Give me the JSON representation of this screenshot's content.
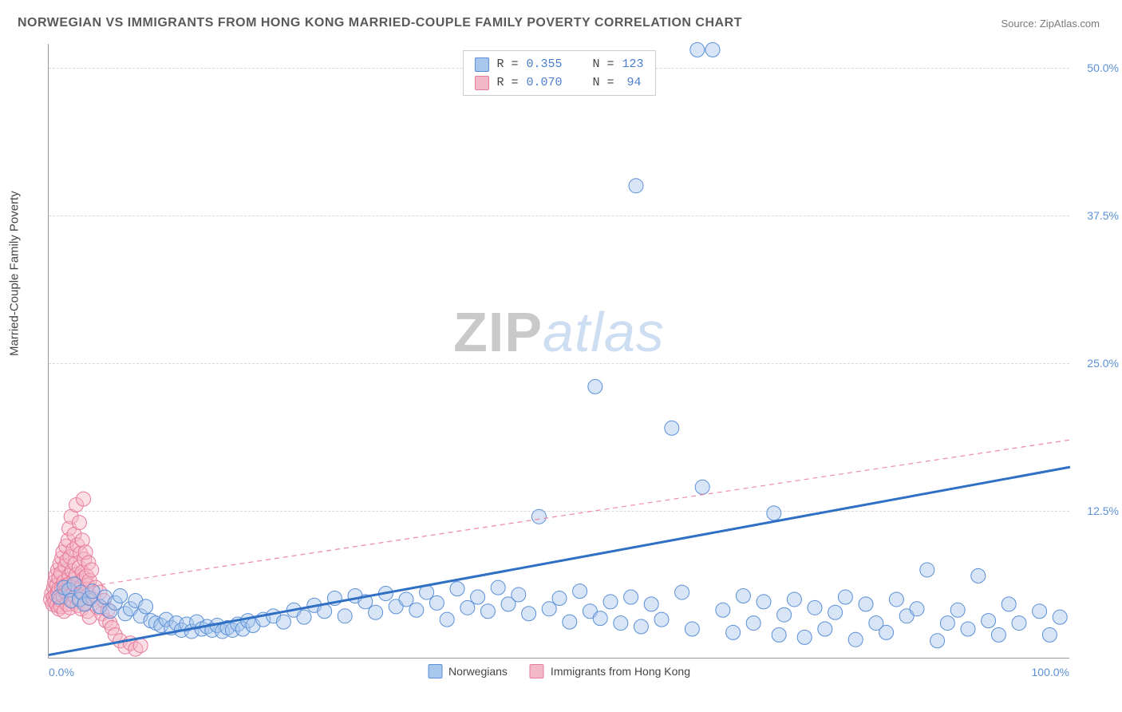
{
  "title": "NORWEGIAN VS IMMIGRANTS FROM HONG KONG MARRIED-COUPLE FAMILY POVERTY CORRELATION CHART",
  "source_label": "Source: ",
  "source_name": "ZipAtlas.com",
  "y_axis_title": "Married-Couple Family Poverty",
  "watermark": {
    "part1": "ZIP",
    "part2": "atlas"
  },
  "chart": {
    "type": "scatter",
    "xlim": [
      0,
      100
    ],
    "ylim": [
      0,
      52
    ],
    "x_ticks": [
      0,
      100
    ],
    "x_tick_labels": [
      "0.0%",
      "100.0%"
    ],
    "y_ticks": [
      12.5,
      25.0,
      37.5,
      50.0
    ],
    "y_tick_labels": [
      "12.5%",
      "25.0%",
      "37.5%",
      "50.0%"
    ],
    "background_color": "#ffffff",
    "grid_color": "#d8d8d8",
    "marker_radius": 9,
    "marker_opacity": 0.45,
    "series": [
      {
        "name": "Norwegians",
        "fill": "#a9c6ec",
        "stroke": "#5b8fd6",
        "r_value": "0.355",
        "n_value": "123",
        "trend": {
          "x1": 0,
          "y1": 0.3,
          "x2": 100,
          "y2": 16.2,
          "color": "#2f6fc4",
          "width": 3,
          "dash": "none"
        },
        "points": [
          [
            1,
            5.2
          ],
          [
            1.5,
            6.0
          ],
          [
            2,
            5.8
          ],
          [
            2.2,
            4.9
          ],
          [
            2.5,
            6.3
          ],
          [
            3,
            5.0
          ],
          [
            3.2,
            5.6
          ],
          [
            3.5,
            4.6
          ],
          [
            4,
            5.1
          ],
          [
            4.3,
            5.7
          ],
          [
            5,
            4.4
          ],
          [
            5.5,
            5.2
          ],
          [
            6,
            4.0
          ],
          [
            6.5,
            4.7
          ],
          [
            7,
            5.3
          ],
          [
            7.5,
            3.8
          ],
          [
            8,
            4.2
          ],
          [
            8.5,
            4.9
          ],
          [
            9,
            3.6
          ],
          [
            9.5,
            4.4
          ],
          [
            10,
            3.2
          ],
          [
            10.5,
            3.0
          ],
          [
            11,
            2.8
          ],
          [
            11.5,
            3.3
          ],
          [
            12,
            2.6
          ],
          [
            12.5,
            3.0
          ],
          [
            13,
            2.4
          ],
          [
            13.5,
            2.9
          ],
          [
            14,
            2.3
          ],
          [
            14.5,
            3.1
          ],
          [
            15,
            2.5
          ],
          [
            15.5,
            2.7
          ],
          [
            16,
            2.4
          ],
          [
            16.5,
            2.8
          ],
          [
            17,
            2.3
          ],
          [
            17.5,
            2.6
          ],
          [
            18,
            2.4
          ],
          [
            18.5,
            2.9
          ],
          [
            19,
            2.5
          ],
          [
            19.5,
            3.2
          ],
          [
            20,
            2.8
          ],
          [
            21,
            3.3
          ],
          [
            22,
            3.6
          ],
          [
            23,
            3.1
          ],
          [
            24,
            4.1
          ],
          [
            25,
            3.5
          ],
          [
            26,
            4.5
          ],
          [
            27,
            4.0
          ],
          [
            28,
            5.1
          ],
          [
            29,
            3.6
          ],
          [
            30,
            5.3
          ],
          [
            31,
            4.8
          ],
          [
            32,
            3.9
          ],
          [
            33,
            5.5
          ],
          [
            34,
            4.4
          ],
          [
            35,
            5.0
          ],
          [
            36,
            4.1
          ],
          [
            37,
            5.6
          ],
          [
            38,
            4.7
          ],
          [
            39,
            3.3
          ],
          [
            40,
            5.9
          ],
          [
            41,
            4.3
          ],
          [
            42,
            5.2
          ],
          [
            43,
            4.0
          ],
          [
            44,
            6.0
          ],
          [
            45,
            4.6
          ],
          [
            46,
            5.4
          ],
          [
            47,
            3.8
          ],
          [
            48,
            12.0
          ],
          [
            49,
            4.2
          ],
          [
            50,
            5.1
          ],
          [
            51,
            3.1
          ],
          [
            52,
            5.7
          ],
          [
            53,
            4.0
          ],
          [
            53.5,
            23.0
          ],
          [
            54,
            3.4
          ],
          [
            55,
            4.8
          ],
          [
            56,
            3.0
          ],
          [
            57,
            5.2
          ],
          [
            57.5,
            40.0
          ],
          [
            58,
            2.7
          ],
          [
            59,
            4.6
          ],
          [
            60,
            3.3
          ],
          [
            61,
            19.5
          ],
          [
            62,
            5.6
          ],
          [
            63,
            2.5
          ],
          [
            63.5,
            51.5
          ],
          [
            64,
            14.5
          ],
          [
            65,
            51.5
          ],
          [
            66,
            4.1
          ],
          [
            67,
            2.2
          ],
          [
            68,
            5.3
          ],
          [
            69,
            3.0
          ],
          [
            70,
            4.8
          ],
          [
            71,
            12.3
          ],
          [
            71.5,
            2.0
          ],
          [
            72,
            3.7
          ],
          [
            73,
            5.0
          ],
          [
            74,
            1.8
          ],
          [
            75,
            4.3
          ],
          [
            76,
            2.5
          ],
          [
            77,
            3.9
          ],
          [
            78,
            5.2
          ],
          [
            79,
            1.6
          ],
          [
            80,
            4.6
          ],
          [
            81,
            3.0
          ],
          [
            82,
            2.2
          ],
          [
            83,
            5.0
          ],
          [
            84,
            3.6
          ],
          [
            85,
            4.2
          ],
          [
            86,
            7.5
          ],
          [
            87,
            1.5
          ],
          [
            88,
            3.0
          ],
          [
            89,
            4.1
          ],
          [
            90,
            2.5
          ],
          [
            91,
            7.0
          ],
          [
            92,
            3.2
          ],
          [
            93,
            2.0
          ],
          [
            94,
            4.6
          ],
          [
            95,
            3.0
          ],
          [
            97,
            4.0
          ],
          [
            98,
            2.0
          ],
          [
            99,
            3.5
          ]
        ]
      },
      {
        "name": "Immigrants from Hong Kong",
        "fill": "#f4b9c8",
        "stroke": "#e67a9a",
        "r_value": "0.070",
        "n_value": "94",
        "trend": {
          "x1": 0,
          "y1": 5.6,
          "x2": 100,
          "y2": 18.5,
          "color": "#f08aa3",
          "width": 1.2,
          "dash": "6,5"
        },
        "points": [
          [
            0.2,
            5.0
          ],
          [
            0.3,
            5.5
          ],
          [
            0.4,
            4.6
          ],
          [
            0.5,
            6.0
          ],
          [
            0.5,
            5.2
          ],
          [
            0.6,
            4.8
          ],
          [
            0.6,
            6.5
          ],
          [
            0.7,
            5.4
          ],
          [
            0.7,
            7.0
          ],
          [
            0.8,
            4.5
          ],
          [
            0.8,
            6.2
          ],
          [
            0.9,
            5.6
          ],
          [
            0.9,
            7.5
          ],
          [
            1.0,
            4.2
          ],
          [
            1.0,
            6.8
          ],
          [
            1.0,
            5.9
          ],
          [
            1.1,
            8.0
          ],
          [
            1.1,
            5.0
          ],
          [
            1.2,
            4.4
          ],
          [
            1.2,
            7.2
          ],
          [
            1.3,
            6.0
          ],
          [
            1.3,
            8.5
          ],
          [
            1.4,
            5.3
          ],
          [
            1.4,
            9.0
          ],
          [
            1.5,
            6.5
          ],
          [
            1.5,
            4.0
          ],
          [
            1.6,
            7.8
          ],
          [
            1.6,
            5.7
          ],
          [
            1.7,
            9.5
          ],
          [
            1.7,
            6.2
          ],
          [
            1.8,
            4.6
          ],
          [
            1.8,
            8.3
          ],
          [
            1.9,
            10.0
          ],
          [
            1.9,
            5.9
          ],
          [
            2.0,
            7.0
          ],
          [
            2.0,
            11.0
          ],
          [
            2.0,
            6.3
          ],
          [
            2.1,
            4.3
          ],
          [
            2.1,
            8.6
          ],
          [
            2.2,
            5.5
          ],
          [
            2.2,
            12.0
          ],
          [
            2.3,
            7.4
          ],
          [
            2.3,
            6.0
          ],
          [
            2.4,
            9.2
          ],
          [
            2.4,
            4.8
          ],
          [
            2.5,
            10.5
          ],
          [
            2.5,
            6.7
          ],
          [
            2.6,
            5.2
          ],
          [
            2.6,
            8.0
          ],
          [
            2.7,
            13.0
          ],
          [
            2.7,
            7.1
          ],
          [
            2.8,
            4.5
          ],
          [
            2.8,
            9.6
          ],
          [
            2.9,
            6.4
          ],
          [
            2.9,
            5.8
          ],
          [
            3.0,
            11.5
          ],
          [
            3.0,
            7.7
          ],
          [
            3.1,
            5.0
          ],
          [
            3.1,
            8.9
          ],
          [
            3.2,
            6.1
          ],
          [
            3.2,
            4.2
          ],
          [
            3.3,
            10.0
          ],
          [
            3.3,
            7.3
          ],
          [
            3.4,
            5.5
          ],
          [
            3.4,
            13.5
          ],
          [
            3.5,
            6.8
          ],
          [
            3.5,
            8.4
          ],
          [
            3.6,
            4.7
          ],
          [
            3.6,
            9.0
          ],
          [
            3.7,
            5.9
          ],
          [
            3.7,
            7.0
          ],
          [
            3.8,
            6.2
          ],
          [
            3.8,
            4.0
          ],
          [
            3.9,
            8.1
          ],
          [
            3.9,
            5.4
          ],
          [
            4.0,
            6.6
          ],
          [
            4.0,
            3.5
          ],
          [
            4.2,
            7.5
          ],
          [
            4.4,
            5.0
          ],
          [
            4.6,
            6.0
          ],
          [
            4.8,
            4.3
          ],
          [
            5.0,
            5.6
          ],
          [
            5.2,
            3.8
          ],
          [
            5.4,
            4.9
          ],
          [
            5.6,
            3.2
          ],
          [
            5.8,
            4.1
          ],
          [
            6.0,
            3.0
          ],
          [
            6.2,
            2.6
          ],
          [
            6.5,
            2.0
          ],
          [
            7.0,
            1.5
          ],
          [
            7.5,
            1.0
          ],
          [
            8.0,
            1.3
          ],
          [
            8.5,
            0.8
          ],
          [
            9.0,
            1.1
          ]
        ]
      }
    ],
    "stats_labels": {
      "r": "R =",
      "n": "N ="
    },
    "legend_labels": [
      "Norwegians",
      "Immigrants from Hong Kong"
    ]
  }
}
